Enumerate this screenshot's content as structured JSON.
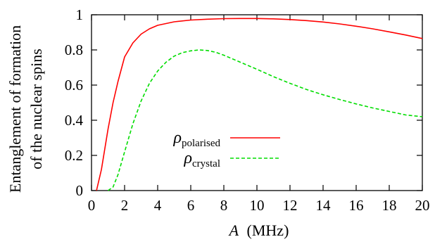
{
  "chart_data": {
    "type": "line",
    "title": "",
    "xlabel": "A",
    "xlabel_unit": "(MHz)",
    "ylabel_lines": [
      "Entanglement of formation",
      "of the nuclear spins"
    ],
    "xlim": [
      0,
      20
    ],
    "ylim": [
      0,
      1
    ],
    "xticks": [
      0,
      2,
      4,
      6,
      8,
      10,
      12,
      14,
      16,
      18,
      20
    ],
    "xtick_labels": [
      "0",
      "2",
      "4",
      "6",
      "8",
      "10",
      "12",
      "14",
      "16",
      "18",
      "20"
    ],
    "yticks": [
      0,
      0.2,
      0.4,
      0.6,
      0.8,
      1
    ],
    "ytick_labels": [
      "0",
      "0.2",
      "0.4",
      "0.6",
      "0.8",
      "1"
    ],
    "grid": false,
    "legend_position": "bottom-center",
    "series": [
      {
        "name": "ρ",
        "name_subscript": "polarised",
        "color": "#ff0000",
        "style": "solid",
        "x": [
          0.3,
          0.6,
          1.0,
          1.3,
          1.6,
          2.0,
          2.5,
          3.0,
          3.5,
          4.0,
          5.0,
          6.0,
          7.0,
          8.0,
          9.0,
          10.0,
          11.0,
          12.0,
          13.0,
          14.0,
          15.0,
          16.0,
          17.0,
          18.0,
          19.0,
          20.0
        ],
        "y": [
          0.0,
          0.12,
          0.35,
          0.5,
          0.62,
          0.76,
          0.84,
          0.89,
          0.92,
          0.94,
          0.96,
          0.97,
          0.975,
          0.978,
          0.979,
          0.979,
          0.977,
          0.973,
          0.967,
          0.959,
          0.948,
          0.935,
          0.92,
          0.903,
          0.885,
          0.865
        ]
      },
      {
        "name": "ρ",
        "name_subscript": "crystal",
        "color": "#00dd00",
        "style": "dashed",
        "x": [
          1.0,
          1.3,
          1.6,
          2.0,
          2.5,
          3.0,
          3.5,
          4.0,
          4.5,
          5.0,
          5.5,
          6.0,
          6.5,
          7.0,
          7.5,
          8.0,
          9.0,
          10.0,
          11.0,
          12.0,
          13.0,
          14.0,
          15.0,
          16.0,
          17.0,
          18.0,
          19.0,
          20.0
        ],
        "y": [
          0.0,
          0.02,
          0.09,
          0.22,
          0.38,
          0.51,
          0.61,
          0.68,
          0.73,
          0.765,
          0.785,
          0.795,
          0.8,
          0.797,
          0.787,
          0.77,
          0.73,
          0.69,
          0.648,
          0.61,
          0.575,
          0.545,
          0.518,
          0.493,
          0.47,
          0.45,
          0.43,
          0.42
        ]
      }
    ]
  }
}
